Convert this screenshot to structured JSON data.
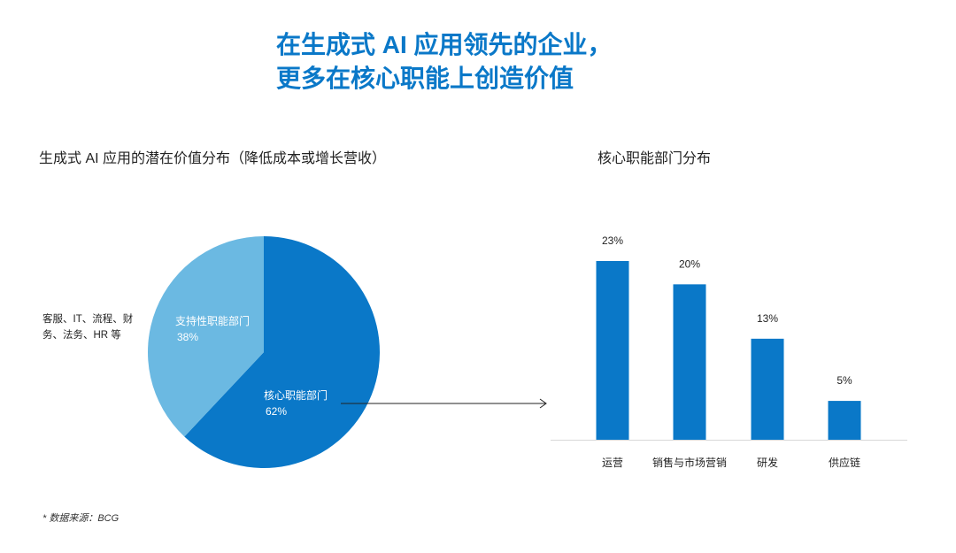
{
  "title": {
    "line1": "在生成式 AI 应用领先的企业，",
    "line2": "更多在核心职能上创造价值"
  },
  "colors": {
    "primary": "#0a78c8",
    "light": "#6bb9e2",
    "text": "#222222"
  },
  "chart_data": [
    {
      "type": "pie",
      "title": "生成式 AI 应用的潜在价值分布（降低成本或增长营收）",
      "slices": [
        {
          "label": "核心职能部门",
          "value": 62,
          "value_label": "62%",
          "color": "#0a78c8"
        },
        {
          "label": "支持性职能部门",
          "value": 38,
          "value_label": "38%",
          "color": "#6bb9e2"
        }
      ],
      "side_note": "客服、IT、流程、财务、法务、HR 等"
    },
    {
      "type": "bar",
      "title": "核心职能部门分布",
      "categories": [
        "运营",
        "销售与市场营销",
        "研发",
        "供应链"
      ],
      "values": [
        23,
        20,
        13,
        5
      ],
      "value_labels": [
        "23%",
        "20%",
        "13%",
        "5%"
      ],
      "ylim": [
        0,
        25
      ],
      "color": "#0a78c8"
    }
  ],
  "footnote": "* 数据来源：BCG"
}
